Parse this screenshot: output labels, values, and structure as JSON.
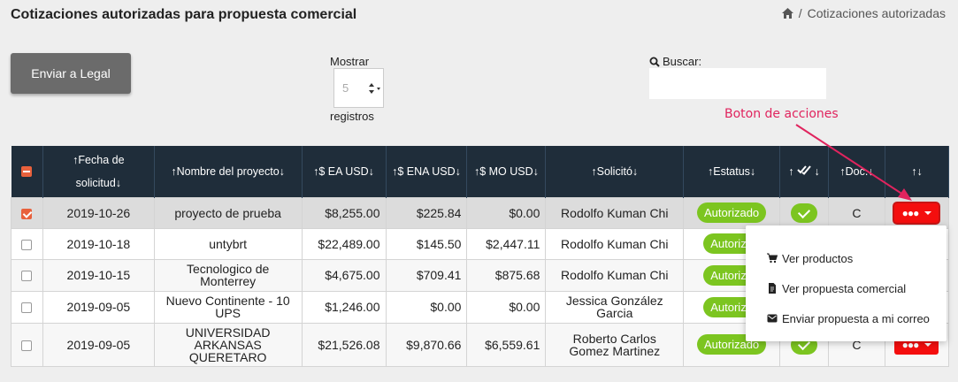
{
  "page": {
    "title": "Cotizaciones autorizadas para propuesta comercial",
    "breadcrumb_sep": "/",
    "breadcrumb_current": "Cotizaciones autorizadas"
  },
  "toolbar": {
    "send_legal_label": "Enviar a Legal",
    "length_label_before": "Mostrar",
    "length_value": "5",
    "length_label_after": "registros",
    "search_label": "Buscar:",
    "search_value": ""
  },
  "annotation": {
    "text": "Boton de acciones"
  },
  "table": {
    "headers": {
      "fecha": "↑Fecha de solicitud↓",
      "fecha_line1": "↑Fecha de",
      "fecha_line2": "solicitud↓",
      "nombre": "↑Nombre del proyecto↓",
      "ea": "↑$ EA USD↓",
      "ena": "↑$ ENA USD↓",
      "mo": "↑$ MO USD↓",
      "solicito": "↑Solicitó↓",
      "estatus": "↑Estatus↓",
      "check_up": "↑",
      "check_down": "↓",
      "doc": "↑Doc.↓",
      "acciones": "↑↓"
    },
    "rows": [
      {
        "fecha": "2019-10-26",
        "nombre": "proyecto de prueba",
        "ea": "$8,255.00",
        "ena": "$225.84",
        "mo": "$0.00",
        "solicito": "Rodolfo Kuman Chi",
        "estatus": "Autorizado",
        "doc": "C",
        "selected": true
      },
      {
        "fecha": "2019-10-18",
        "nombre": "untybrt",
        "ea": "$22,489.00",
        "ena": "$145.50",
        "mo": "$2,447.11",
        "solicito": "Rodolfo Kuman Chi",
        "estatus": "Autoriza"
      },
      {
        "fecha": "2019-10-15",
        "nombre": "Tecnologico de Monterrey",
        "ea": "$4,675.00",
        "ena": "$709.41",
        "mo": "$875.68",
        "solicito": "Rodolfo Kuman Chi",
        "estatus": "Autoriza"
      },
      {
        "fecha": "2019-09-05",
        "nombre": "Nuevo Continente - 10 UPS",
        "ea": "$1,246.00",
        "ena": "$0.00",
        "mo": "$0.00",
        "solicito": "Jessica González Garcia",
        "estatus": "Autoriza"
      },
      {
        "fecha": "2019-09-05",
        "nombre": "UNIVERSIDAD ARKANSAS QUERETARO",
        "ea": "$21,526.08",
        "ena": "$9,870.66",
        "mo": "$6,559.61",
        "solicito": "Roberto Carlos Gomez Martinez",
        "estatus": "Autorizado",
        "doc": "C"
      }
    ],
    "action_dots": "●●●"
  },
  "dropdown_menu": {
    "items": [
      {
        "label": "Ver productos",
        "icon": "cart-icon"
      },
      {
        "label": "Ver propuesta comercial",
        "icon": "pdf-file-icon"
      },
      {
        "label": "Enviar propuesta a mi correo",
        "icon": "envelope-icon"
      }
    ]
  },
  "colors": {
    "header_bg": "#1f2d3a",
    "status_green": "#7cc520",
    "action_red": "#f40e0e",
    "annotation_pink": "#e0245e",
    "checkbox_orange": "#e8613c"
  }
}
